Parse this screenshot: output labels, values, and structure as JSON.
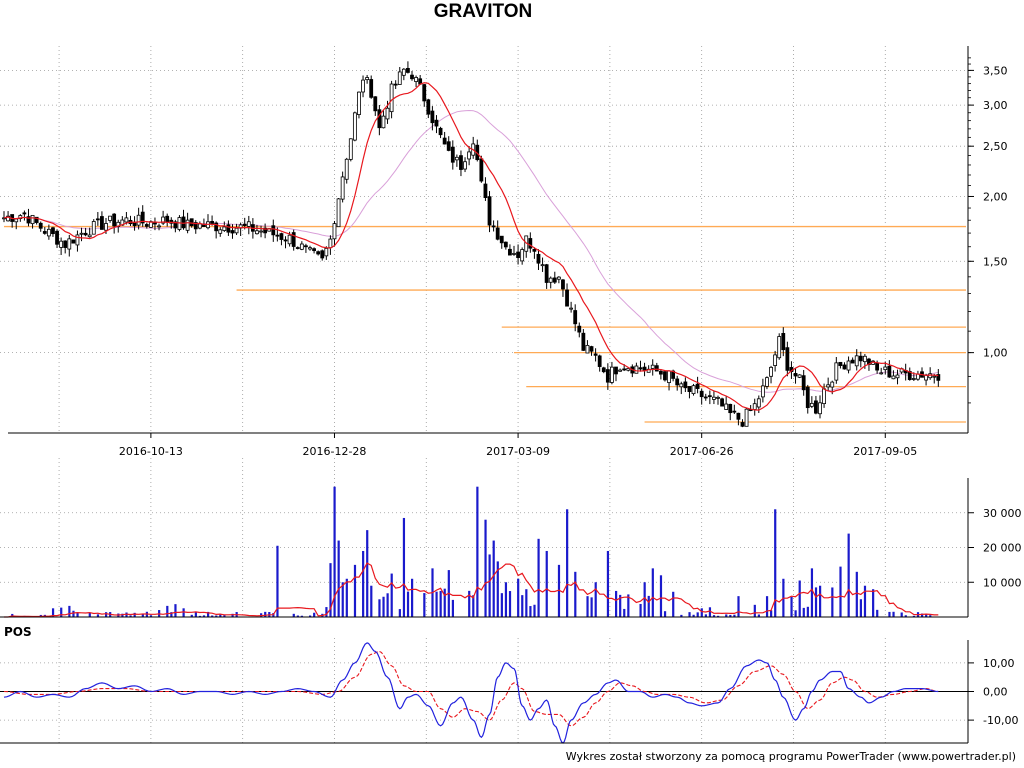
{
  "title": "GRAVITON",
  "footer": "Wykres został stworzony za pomocą programu PowerTrader (www.powertrader.pl)",
  "colors": {
    "candle_up": "#ffffff",
    "candle_down": "#000000",
    "sma_short": "#e8181e",
    "sma_long": "#d9a0d9",
    "levels": "#ffaa55",
    "volume_bars": "#1a1acc",
    "volume_avg": "#e8181e",
    "osc_main": "#2222dd",
    "osc_signal": "#e8181e"
  },
  "chart_data": [
    {
      "type": "candlestick",
      "name": "price",
      "title": "GRAVITON",
      "scale": "log",
      "ylim": [
        0.7,
        3.9
      ],
      "y_ticks": [
        3.5,
        3.0,
        2.5,
        2.0,
        1.5,
        1.0
      ],
      "y_tick_labels": [
        "3,50",
        "3,00",
        "2,50",
        "2,00",
        "1,50",
        "1,00"
      ],
      "x_tick_labels": [
        "2016-10-13",
        "2016-12-28",
        "2017-03-09",
        "2017-06-26",
        "2017-09-05"
      ],
      "x_tick_index": [
        36,
        81,
        126,
        171,
        216
      ],
      "n_bars": 230,
      "close_anchors": [
        [
          0,
          1.82
        ],
        [
          5,
          1.85
        ],
        [
          10,
          1.72
        ],
        [
          15,
          1.62
        ],
        [
          20,
          1.72
        ],
        [
          25,
          1.78
        ],
        [
          30,
          1.8
        ],
        [
          35,
          1.78
        ],
        [
          40,
          1.8
        ],
        [
          45,
          1.76
        ],
        [
          50,
          1.76
        ],
        [
          55,
          1.75
        ],
        [
          60,
          1.74
        ],
        [
          65,
          1.7
        ],
        [
          70,
          1.66
        ],
        [
          75,
          1.55
        ],
        [
          78,
          1.5
        ],
        [
          80,
          1.65
        ],
        [
          82,
          2.0
        ],
        [
          85,
          2.6
        ],
        [
          88,
          3.4
        ],
        [
          90,
          3.2
        ],
        [
          92,
          2.7
        ],
        [
          95,
          3.2
        ],
        [
          98,
          3.5
        ],
        [
          100,
          3.45
        ],
        [
          103,
          3.1
        ],
        [
          106,
          2.7
        ],
        [
          109,
          2.4
        ],
        [
          112,
          2.3
        ],
        [
          115,
          2.6
        ],
        [
          117,
          2.1
        ],
        [
          119,
          1.8
        ],
        [
          121,
          1.7
        ],
        [
          123,
          1.6
        ],
        [
          126,
          1.55
        ],
        [
          128,
          1.65
        ],
        [
          130,
          1.6
        ],
        [
          133,
          1.4
        ],
        [
          136,
          1.4
        ],
        [
          139,
          1.2
        ],
        [
          142,
          1.02
        ],
        [
          145,
          0.98
        ],
        [
          148,
          0.9
        ],
        [
          151,
          0.95
        ],
        [
          154,
          0.94
        ],
        [
          157,
          0.93
        ],
        [
          160,
          0.92
        ],
        [
          163,
          0.9
        ],
        [
          166,
          0.85
        ],
        [
          169,
          0.84
        ],
        [
          172,
          0.82
        ],
        [
          175,
          0.8
        ],
        [
          178,
          0.76
        ],
        [
          181,
          0.74
        ],
        [
          184,
          0.79
        ],
        [
          187,
          0.88
        ],
        [
          190,
          1.05
        ],
        [
          192,
          0.95
        ],
        [
          195,
          0.88
        ],
        [
          197,
          0.8
        ],
        [
          199,
          0.78
        ],
        [
          201,
          0.85
        ],
        [
          204,
          0.93
        ],
        [
          207,
          0.97
        ],
        [
          210,
          0.98
        ],
        [
          212,
          0.96
        ],
        [
          214,
          0.92
        ],
        [
          216,
          0.92
        ],
        [
          218,
          0.91
        ],
        [
          220,
          0.91
        ],
        [
          223,
          0.91
        ],
        [
          226,
          0.91
        ],
        [
          229,
          0.91
        ]
      ],
      "horizontal_levels": [
        {
          "value": 1.75,
          "from_index": 0,
          "to_index": 236
        },
        {
          "value": 1.32,
          "from_index": 57,
          "to_index": 236
        },
        {
          "value": 1.12,
          "from_index": 122,
          "to_index": 236
        },
        {
          "value": 1.0,
          "from_index": 125,
          "to_index": 236
        },
        {
          "value": 0.86,
          "from_index": 128,
          "to_index": 236
        },
        {
          "value": 0.735,
          "from_index": 157,
          "to_index": 236
        }
      ],
      "series": [
        {
          "name": "",
          "kind": "moving_average",
          "period": 10
        },
        {
          "name": "",
          "kind": "moving_average",
          "period": 30
        }
      ]
    },
    {
      "type": "bar",
      "name": "volume",
      "ylim": [
        0,
        40000
      ],
      "y_ticks": [
        30000,
        20000,
        10000
      ],
      "y_tick_labels": [
        "30 000",
        "20 000",
        "10 000"
      ],
      "spikes": [
        [
          12,
          2500
        ],
        [
          14,
          2700
        ],
        [
          16,
          3200
        ],
        [
          17,
          1800
        ],
        [
          28,
          1000
        ],
        [
          32,
          1200
        ],
        [
          35,
          1500
        ],
        [
          38,
          2000
        ],
        [
          40,
          3200
        ],
        [
          41,
          1400
        ],
        [
          42,
          3700
        ],
        [
          44,
          2500
        ],
        [
          67,
          20500
        ],
        [
          80,
          15500
        ],
        [
          81,
          37500
        ],
        [
          82,
          22000
        ],
        [
          83,
          10000
        ],
        [
          84,
          11000
        ],
        [
          86,
          15000
        ],
        [
          88,
          19000
        ],
        [
          89,
          25000
        ],
        [
          90,
          9000
        ],
        [
          95,
          12500
        ],
        [
          98,
          28500
        ],
        [
          100,
          11000
        ],
        [
          105,
          14000
        ],
        [
          109,
          13500
        ],
        [
          116,
          37500
        ],
        [
          118,
          28000
        ],
        [
          119,
          18000
        ],
        [
          120,
          22000
        ],
        [
          121,
          16000
        ],
        [
          123,
          10000
        ],
        [
          126,
          11000
        ],
        [
          128,
          8000
        ],
        [
          131,
          22500
        ],
        [
          133,
          19000
        ],
        [
          136,
          15000
        ],
        [
          138,
          31000
        ],
        [
          140,
          13000
        ],
        [
          143,
          6000
        ],
        [
          145,
          10000
        ],
        [
          148,
          19000
        ],
        [
          150,
          7500
        ],
        [
          153,
          6500
        ],
        [
          157,
          10000
        ],
        [
          159,
          14000
        ],
        [
          161,
          12000
        ],
        [
          171,
          2500
        ],
        [
          173,
          2800
        ],
        [
          180,
          6000
        ],
        [
          184,
          3500
        ],
        [
          187,
          6000
        ],
        [
          189,
          31000
        ],
        [
          191,
          11000
        ],
        [
          195,
          10500
        ],
        [
          198,
          14000
        ],
        [
          200,
          9000
        ],
        [
          203,
          8500
        ],
        [
          205,
          14500
        ],
        [
          207,
          24000
        ],
        [
          209,
          13000
        ],
        [
          211,
          9000
        ],
        [
          213,
          8000
        ],
        [
          218,
          1500
        ]
      ],
      "series": [
        {
          "name": "",
          "kind": "moving_average",
          "period": 10
        }
      ]
    },
    {
      "type": "line",
      "name": "oscillator",
      "title": "POS",
      "ylim": [
        -18,
        18
      ],
      "y_ticks": [
        10,
        0,
        -10
      ],
      "y_tick_labels": [
        "10,00",
        "0,00",
        "-10,00"
      ],
      "series": [
        {
          "name": "",
          "points": [
            [
              0,
              -2
            ],
            [
              4,
              0
            ],
            [
              8,
              -2
            ],
            [
              12,
              -1
            ],
            [
              16,
              -2
            ],
            [
              20,
              1
            ],
            [
              24,
              3
            ],
            [
              28,
              1
            ],
            [
              32,
              2
            ],
            [
              36,
              0
            ],
            [
              40,
              1
            ],
            [
              44,
              -1
            ],
            [
              48,
              0
            ],
            [
              52,
              0
            ],
            [
              56,
              -1
            ],
            [
              60,
              0
            ],
            [
              64,
              -1
            ],
            [
              68,
              0
            ],
            [
              72,
              1
            ],
            [
              76,
              0
            ],
            [
              80,
              -2
            ],
            [
              83,
              4
            ],
            [
              86,
              10
            ],
            [
              89,
              17
            ],
            [
              91,
              14
            ],
            [
              94,
              5
            ],
            [
              97,
              -6
            ],
            [
              99,
              -2
            ],
            [
              101,
              -1
            ],
            [
              104,
              -5
            ],
            [
              107,
              -12
            ],
            [
              110,
              -4
            ],
            [
              112,
              -2
            ],
            [
              115,
              -10
            ],
            [
              117,
              -16
            ],
            [
              119,
              -8
            ],
            [
              121,
              5
            ],
            [
              123,
              10
            ],
            [
              125,
              8
            ],
            [
              127,
              -5
            ],
            [
              129,
              -10
            ],
            [
              131,
              -6
            ],
            [
              133,
              -3
            ],
            [
              135,
              -12
            ],
            [
              137,
              -18
            ],
            [
              139,
              -10
            ],
            [
              142,
              -4
            ],
            [
              145,
              -1
            ],
            [
              148,
              3
            ],
            [
              150,
              4
            ],
            [
              153,
              0
            ],
            [
              156,
              0
            ],
            [
              159,
              -2
            ],
            [
              162,
              -1
            ],
            [
              165,
              -2
            ],
            [
              168,
              -4
            ],
            [
              171,
              -5
            ],
            [
              175,
              -4
            ],
            [
              178,
              1
            ],
            [
              182,
              9
            ],
            [
              185,
              11
            ],
            [
              187,
              10
            ],
            [
              189,
              4
            ],
            [
              191,
              -2
            ],
            [
              194,
              -10
            ],
            [
              196,
              -6
            ],
            [
              198,
              0
            ],
            [
              200,
              4
            ],
            [
              203,
              7
            ],
            [
              205,
              7
            ],
            [
              207,
              1
            ],
            [
              210,
              -2
            ],
            [
              212,
              -4
            ],
            [
              215,
              -2
            ],
            [
              218,
              0
            ],
            [
              221,
              1
            ],
            [
              225,
              1
            ],
            [
              229,
              0
            ]
          ]
        },
        {
          "name": "",
          "points": [
            [
              0,
              0
            ],
            [
              6,
              -1
            ],
            [
              12,
              -1
            ],
            [
              18,
              0
            ],
            [
              24,
              1
            ],
            [
              30,
              1
            ],
            [
              36,
              0
            ],
            [
              42,
              0
            ],
            [
              48,
              0
            ],
            [
              54,
              0
            ],
            [
              60,
              0
            ],
            [
              66,
              0
            ],
            [
              72,
              0
            ],
            [
              78,
              -1
            ],
            [
              82,
              0
            ],
            [
              86,
              5
            ],
            [
              90,
              13
            ],
            [
              92,
              14
            ],
            [
              95,
              9
            ],
            [
              98,
              2
            ],
            [
              101,
              0
            ],
            [
              104,
              0
            ],
            [
              107,
              -6
            ],
            [
              110,
              -9
            ],
            [
              113,
              -6
            ],
            [
              116,
              -7
            ],
            [
              119,
              -10
            ],
            [
              122,
              -3
            ],
            [
              125,
              3
            ],
            [
              127,
              1
            ],
            [
              130,
              -7
            ],
            [
              133,
              -8
            ],
            [
              136,
              -8
            ],
            [
              139,
              -12
            ],
            [
              142,
              -9
            ],
            [
              145,
              -4
            ],
            [
              148,
              0
            ],
            [
              151,
              3
            ],
            [
              154,
              2
            ],
            [
              157,
              0
            ],
            [
              160,
              -1
            ],
            [
              164,
              -1
            ],
            [
              168,
              -2
            ],
            [
              172,
              -4
            ],
            [
              176,
              -3
            ],
            [
              180,
              2
            ],
            [
              184,
              7
            ],
            [
              188,
              9
            ],
            [
              191,
              6
            ],
            [
              194,
              0
            ],
            [
              197,
              -6
            ],
            [
              200,
              -3
            ],
            [
              203,
              3
            ],
            [
              206,
              5
            ],
            [
              208,
              4
            ],
            [
              211,
              0
            ],
            [
              214,
              -2
            ],
            [
              218,
              -1
            ],
            [
              222,
              0
            ],
            [
              226,
              1
            ],
            [
              229,
              0
            ]
          ]
        }
      ]
    }
  ]
}
